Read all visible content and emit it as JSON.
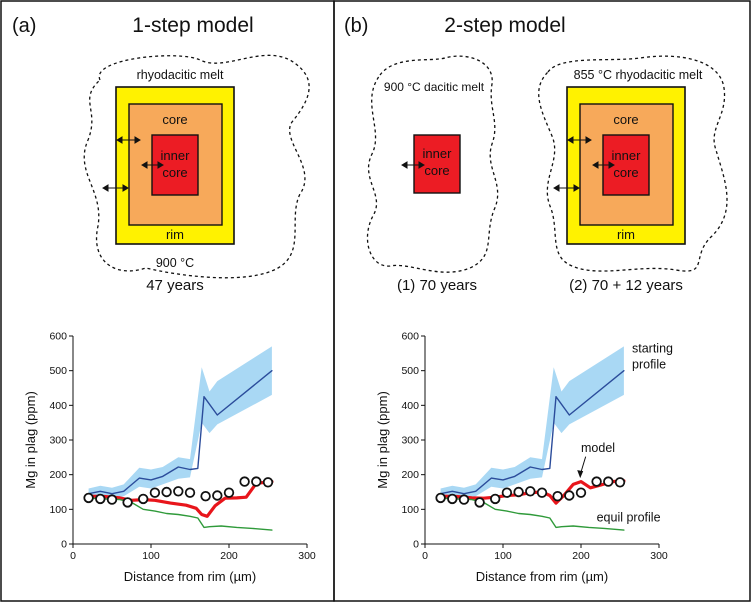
{
  "panels": [
    {
      "letter": "(a)",
      "title": "1-step model",
      "diagrams": [
        {
          "melt": "rhyodacitic melt",
          "core": "core",
          "inner": [
            "inner",
            "core"
          ],
          "rim": "rim",
          "temp": "900 °C",
          "caption": "47 years"
        }
      ]
    },
    {
      "letter": "(b)",
      "title": "2-step model",
      "diagrams": [
        {
          "melt": "900 °C dacitic melt",
          "inner": [
            "inner",
            "core"
          ],
          "caption": "(1) 70 years"
        },
        {
          "melt": "855 °C rhyodacitic melt",
          "core": "core",
          "inner": [
            "inner",
            "core"
          ],
          "rim": "rim",
          "caption": "(2) 70 + 12 years"
        }
      ]
    }
  ],
  "colors": {
    "rim": "#fff200",
    "core": "#f7a95a",
    "inner": "#ec1c24",
    "band": "#a9d8f4",
    "starting": "#2b4c9b",
    "model": "#e8151b",
    "equil": "#2f9a3a"
  },
  "chart_data": [
    {
      "type": "line",
      "panel": "(a)",
      "xlabel": "Distance from rim (µm)",
      "ylabel": "Mg in plag (ppm)",
      "xlim": [
        0,
        300
      ],
      "ylim": [
        0,
        600
      ],
      "xticks": [
        0,
        100,
        200,
        300
      ],
      "yticks": [
        0,
        100,
        200,
        300,
        400,
        500,
        600
      ],
      "band": {
        "x": [
          20,
          35,
          50,
          65,
          85,
          100,
          115,
          135,
          150,
          165,
          175,
          185,
          255
        ],
        "upper": [
          160,
          168,
          162,
          172,
          220,
          215,
          222,
          250,
          245,
          510,
          440,
          470,
          570
        ],
        "lower": [
          130,
          130,
          130,
          138,
          165,
          160,
          172,
          188,
          192,
          350,
          320,
          345,
          430
        ]
      },
      "series": [
        {
          "name": "starting profile",
          "color": "#2b4c9b",
          "x": [
            20,
            35,
            50,
            65,
            85,
            100,
            115,
            135,
            150,
            160,
            168,
            185,
            255
          ],
          "y": [
            145,
            152,
            145,
            152,
            190,
            185,
            195,
            222,
            215,
            218,
            425,
            372,
            500
          ]
        },
        {
          "name": "model",
          "color": "#e8151b",
          "x": [
            20,
            40,
            60,
            75,
            90,
            105,
            125,
            145,
            158,
            165,
            172,
            182,
            195,
            210,
            222,
            235,
            255
          ],
          "y": [
            138,
            137,
            133,
            126,
            128,
            126,
            118,
            112,
            103,
            85,
            80,
            110,
            132,
            133,
            135,
            175,
            180
          ]
        },
        {
          "name": "equil profile",
          "color": "#2f9a3a",
          "x": [
            20,
            40,
            60,
            75,
            90,
            105,
            120,
            135,
            150,
            160,
            168,
            175,
            190,
            210,
            230,
            255
          ],
          "y": [
            132,
            130,
            128,
            120,
            100,
            95,
            88,
            85,
            80,
            75,
            48,
            50,
            52,
            48,
            45,
            40
          ]
        }
      ],
      "markers": {
        "x": [
          20,
          35,
          50,
          70,
          90,
          105,
          120,
          135,
          150,
          170,
          185,
          200,
          220,
          235,
          250
        ],
        "y": [
          133,
          130,
          128,
          120,
          130,
          148,
          150,
          152,
          148,
          138,
          140,
          148,
          180,
          180,
          178
        ]
      }
    },
    {
      "type": "line",
      "panel": "(b)",
      "xlabel": "Distance from rim (µm)",
      "ylabel": "Mg in plag (ppm)",
      "xlim": [
        0,
        300
      ],
      "ylim": [
        0,
        600
      ],
      "xticks": [
        0,
        100,
        200,
        300
      ],
      "yticks": [
        0,
        100,
        200,
        300,
        400,
        500,
        600
      ],
      "annotations": {
        "starting": [
          "starting",
          "profile"
        ],
        "model": "model",
        "equil": "equil profile"
      },
      "band": {
        "x": [
          20,
          35,
          50,
          65,
          85,
          100,
          115,
          135,
          150,
          165,
          175,
          185,
          255
        ],
        "upper": [
          160,
          168,
          162,
          172,
          220,
          215,
          222,
          250,
          245,
          510,
          440,
          470,
          570
        ],
        "lower": [
          130,
          130,
          130,
          138,
          165,
          160,
          172,
          188,
          192,
          350,
          320,
          345,
          430
        ]
      },
      "series": [
        {
          "name": "starting profile",
          "color": "#2b4c9b",
          "x": [
            20,
            35,
            50,
            65,
            85,
            100,
            115,
            135,
            150,
            160,
            168,
            185,
            255
          ],
          "y": [
            145,
            152,
            145,
            152,
            190,
            185,
            195,
            222,
            215,
            218,
            425,
            372,
            500
          ]
        },
        {
          "name": "model",
          "color": "#e8151b",
          "x": [
            20,
            40,
            60,
            75,
            90,
            105,
            120,
            135,
            150,
            160,
            168,
            178,
            190,
            200,
            212,
            225,
            240,
            255
          ],
          "y": [
            138,
            137,
            133,
            132,
            135,
            140,
            142,
            148,
            150,
            140,
            118,
            140,
            172,
            180,
            162,
            170,
            180,
            182
          ]
        },
        {
          "name": "equil profile",
          "color": "#2f9a3a",
          "x": [
            20,
            40,
            60,
            75,
            90,
            105,
            120,
            135,
            150,
            160,
            168,
            175,
            190,
            210,
            230,
            255
          ],
          "y": [
            132,
            130,
            128,
            120,
            100,
            95,
            88,
            85,
            80,
            75,
            48,
            50,
            52,
            48,
            45,
            40
          ]
        }
      ],
      "markers": {
        "x": [
          20,
          35,
          50,
          70,
          90,
          105,
          120,
          135,
          150,
          170,
          185,
          200,
          220,
          235,
          250
        ],
        "y": [
          133,
          130,
          128,
          120,
          130,
          148,
          150,
          152,
          148,
          138,
          140,
          148,
          180,
          180,
          178
        ]
      }
    }
  ]
}
